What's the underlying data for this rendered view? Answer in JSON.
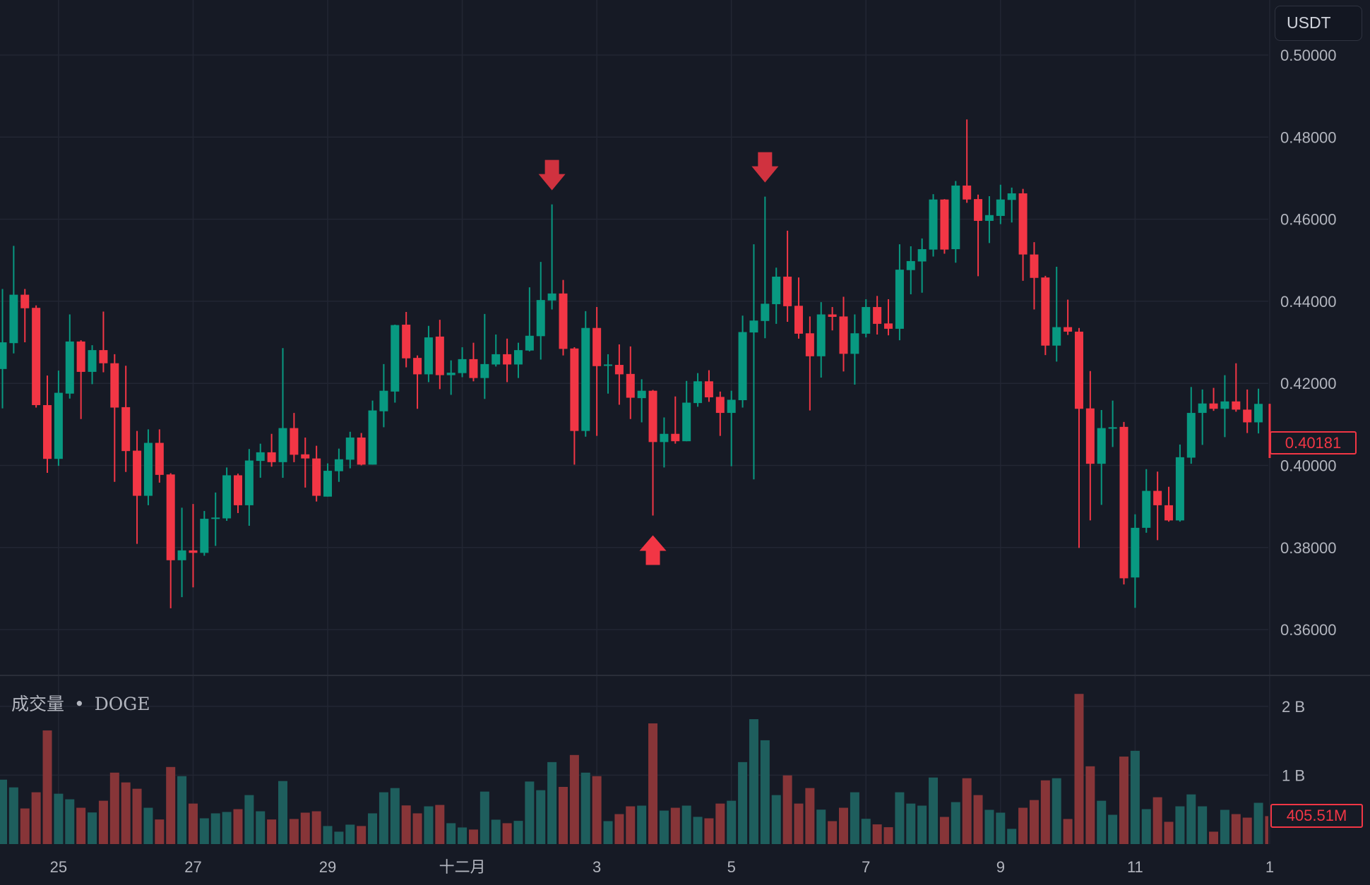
{
  "toolbar": {
    "currency_button": "USDT"
  },
  "volume_pane": {
    "title": "成交量",
    "separator": "•",
    "symbol": "DOGE"
  },
  "last_price_label": "0.40181",
  "last_volume_label": "405.51M",
  "colors": {
    "background": "#161a25",
    "grid": "#222633",
    "up": "#089981",
    "down": "#f23645",
    "volume_up": "#1e5e5d",
    "volume_down": "#873538",
    "marker_down": "#d0323f",
    "marker_up": "#f23645",
    "axis_text": "#b2b5be"
  },
  "chart_data": [
    {
      "type": "candlestick",
      "ylim": [
        0.35,
        0.5
      ],
      "price_ticks": [
        "0.50000",
        "0.48000",
        "0.46000",
        "0.44000",
        "0.42000",
        "0.40000",
        "0.38000",
        "0.36000"
      ],
      "x_ticks": [
        {
          "label": "25",
          "candle": 5
        },
        {
          "label": "27",
          "candle": 17
        },
        {
          "label": "29",
          "candle": 29
        },
        {
          "label": "十二月",
          "candle": 41
        },
        {
          "label": "3",
          "candle": 53
        },
        {
          "label": "5",
          "candle": 65
        },
        {
          "label": "7",
          "candle": 77
        },
        {
          "label": "9",
          "candle": 89
        },
        {
          "label": "11",
          "candle": 101
        },
        {
          "label": "1",
          "candle": 113
        }
      ],
      "grid": true,
      "fields": [
        "open",
        "high",
        "low",
        "close"
      ],
      "candles": [
        [
          0.4235,
          0.443,
          0.4139,
          0.43
        ],
        [
          0.4298,
          0.4535,
          0.4273,
          0.4416
        ],
        [
          0.4416,
          0.443,
          0.43,
          0.4383
        ],
        [
          0.4384,
          0.439,
          0.4141,
          0.4147
        ],
        [
          0.4147,
          0.4219,
          0.3982,
          0.4016
        ],
        [
          0.4016,
          0.4231,
          0.3999,
          0.4177
        ],
        [
          0.4175,
          0.4368,
          0.4163,
          0.4302
        ],
        [
          0.4302,
          0.4305,
          0.4113,
          0.4228
        ],
        [
          0.4228,
          0.4293,
          0.4198,
          0.4281
        ],
        [
          0.4281,
          0.4375,
          0.4227,
          0.4249
        ],
        [
          0.4249,
          0.4271,
          0.396,
          0.4141
        ],
        [
          0.4142,
          0.4243,
          0.3984,
          0.4035
        ],
        [
          0.4036,
          0.4084,
          0.3809,
          0.3926
        ],
        [
          0.3926,
          0.4088,
          0.3903,
          0.4055
        ],
        [
          0.4055,
          0.4088,
          0.3958,
          0.3977
        ],
        [
          0.3978,
          0.3981,
          0.3652,
          0.3769
        ],
        [
          0.3769,
          0.3897,
          0.3679,
          0.3793
        ],
        [
          0.3793,
          0.3906,
          0.3703,
          0.3787
        ],
        [
          0.3787,
          0.3889,
          0.378,
          0.387
        ],
        [
          0.3871,
          0.3934,
          0.3804,
          0.3873
        ],
        [
          0.3871,
          0.3995,
          0.3865,
          0.3976
        ],
        [
          0.3976,
          0.398,
          0.3884,
          0.3903
        ],
        [
          0.3903,
          0.404,
          0.3853,
          0.4012
        ],
        [
          0.4011,
          0.4053,
          0.397,
          0.4032
        ],
        [
          0.4032,
          0.4077,
          0.3997,
          0.4008
        ],
        [
          0.4008,
          0.4286,
          0.397,
          0.4091
        ],
        [
          0.4091,
          0.4128,
          0.4008,
          0.4026
        ],
        [
          0.4027,
          0.4068,
          0.3946,
          0.4017
        ],
        [
          0.4017,
          0.4048,
          0.3912,
          0.3926
        ],
        [
          0.3924,
          0.4005,
          0.3924,
          0.3987
        ],
        [
          0.3986,
          0.4041,
          0.396,
          0.4015
        ],
        [
          0.4014,
          0.4082,
          0.3993,
          0.4068
        ],
        [
          0.4068,
          0.4079,
          0.4,
          0.4002
        ],
        [
          0.4002,
          0.4158,
          0.4002,
          0.4134
        ],
        [
          0.4132,
          0.4247,
          0.4093,
          0.4182
        ],
        [
          0.418,
          0.4343,
          0.4153,
          0.4342
        ],
        [
          0.4343,
          0.4374,
          0.4239,
          0.4261
        ],
        [
          0.4262,
          0.4268,
          0.4138,
          0.4222
        ],
        [
          0.4222,
          0.434,
          0.4203,
          0.4312
        ],
        [
          0.4314,
          0.4355,
          0.4186,
          0.422
        ],
        [
          0.422,
          0.4256,
          0.4172,
          0.4226
        ],
        [
          0.4225,
          0.4288,
          0.4215,
          0.4259
        ],
        [
          0.4259,
          0.4299,
          0.4205,
          0.4213
        ],
        [
          0.4213,
          0.4369,
          0.4162,
          0.4247
        ],
        [
          0.4246,
          0.4319,
          0.4241,
          0.4271
        ],
        [
          0.4271,
          0.4309,
          0.4203,
          0.4246
        ],
        [
          0.4246,
          0.4299,
          0.4213,
          0.4281
        ],
        [
          0.428,
          0.4434,
          0.4278,
          0.4316
        ],
        [
          0.4315,
          0.4496,
          0.4258,
          0.4403
        ],
        [
          0.4402,
          0.4636,
          0.438,
          0.4419
        ],
        [
          0.4419,
          0.4452,
          0.4268,
          0.4284
        ],
        [
          0.4285,
          0.4288,
          0.4002,
          0.4084
        ],
        [
          0.4084,
          0.4376,
          0.407,
          0.4335
        ],
        [
          0.4335,
          0.4386,
          0.4072,
          0.4242
        ],
        [
          0.4244,
          0.4271,
          0.4175,
          0.4246
        ],
        [
          0.4245,
          0.4295,
          0.4148,
          0.4222
        ],
        [
          0.4223,
          0.429,
          0.4113,
          0.4165
        ],
        [
          0.4164,
          0.421,
          0.4105,
          0.4182
        ],
        [
          0.4182,
          0.4184,
          0.3878,
          0.4057
        ],
        [
          0.4057,
          0.4117,
          0.3995,
          0.4077
        ],
        [
          0.4077,
          0.4168,
          0.4053,
          0.4059
        ],
        [
          0.4059,
          0.4206,
          0.4059,
          0.4153
        ],
        [
          0.4152,
          0.4225,
          0.4143,
          0.4205
        ],
        [
          0.4205,
          0.4232,
          0.4155,
          0.4166
        ],
        [
          0.4167,
          0.418,
          0.4072,
          0.4128
        ],
        [
          0.4128,
          0.4182,
          0.3998,
          0.416
        ],
        [
          0.4159,
          0.4365,
          0.4141,
          0.4325
        ],
        [
          0.4324,
          0.4539,
          0.3966,
          0.4353
        ],
        [
          0.4352,
          0.4655,
          0.431,
          0.4394
        ],
        [
          0.4393,
          0.4482,
          0.4345,
          0.446
        ],
        [
          0.446,
          0.4572,
          0.435,
          0.4388
        ],
        [
          0.4389,
          0.4458,
          0.4309,
          0.4321
        ],
        [
          0.4322,
          0.4363,
          0.4134,
          0.4266
        ],
        [
          0.4266,
          0.4398,
          0.4214,
          0.4368
        ],
        [
          0.4368,
          0.4386,
          0.4329,
          0.4362
        ],
        [
          0.4363,
          0.4411,
          0.4229,
          0.4272
        ],
        [
          0.4272,
          0.4368,
          0.4197,
          0.4322
        ],
        [
          0.4321,
          0.4405,
          0.4312,
          0.4386
        ],
        [
          0.4386,
          0.4413,
          0.4319,
          0.4345
        ],
        [
          0.4346,
          0.4405,
          0.4317,
          0.4333
        ],
        [
          0.4333,
          0.4539,
          0.4305,
          0.4477
        ],
        [
          0.4476,
          0.4534,
          0.4417,
          0.4498
        ],
        [
          0.4497,
          0.4553,
          0.4421,
          0.4527
        ],
        [
          0.4526,
          0.4661,
          0.4509,
          0.4648
        ],
        [
          0.4648,
          0.4649,
          0.4516,
          0.4526
        ],
        [
          0.4527,
          0.4693,
          0.4494,
          0.4682
        ],
        [
          0.4682,
          0.4843,
          0.464,
          0.4648
        ],
        [
          0.4649,
          0.466,
          0.4461,
          0.4596
        ],
        [
          0.4596,
          0.4656,
          0.4542,
          0.461
        ],
        [
          0.4608,
          0.4684,
          0.4588,
          0.4648
        ],
        [
          0.4647,
          0.4677,
          0.4592,
          0.4663
        ],
        [
          0.4663,
          0.4674,
          0.445,
          0.4514
        ],
        [
          0.4514,
          0.4544,
          0.438,
          0.4457
        ],
        [
          0.4458,
          0.4462,
          0.4269,
          0.4292
        ],
        [
          0.4292,
          0.4484,
          0.4253,
          0.4337
        ],
        [
          0.4337,
          0.4404,
          0.4318,
          0.4326
        ],
        [
          0.4326,
          0.4335,
          0.3799,
          0.4138
        ],
        [
          0.4139,
          0.423,
          0.3866,
          0.4004
        ],
        [
          0.4004,
          0.4135,
          0.3904,
          0.4091
        ],
        [
          0.4091,
          0.4158,
          0.4045,
          0.4093
        ],
        [
          0.4094,
          0.4106,
          0.371,
          0.3725
        ],
        [
          0.3727,
          0.3881,
          0.3653,
          0.3848
        ],
        [
          0.3848,
          0.3991,
          0.3836,
          0.3938
        ],
        [
          0.3938,
          0.3985,
          0.3818,
          0.3903
        ],
        [
          0.3903,
          0.3948,
          0.3863,
          0.3866
        ],
        [
          0.3866,
          0.4051,
          0.3863,
          0.402
        ],
        [
          0.4019,
          0.4191,
          0.4004,
          0.4128
        ],
        [
          0.4128,
          0.4185,
          0.405,
          0.4151
        ],
        [
          0.4151,
          0.4189,
          0.4133,
          0.4138
        ],
        [
          0.4138,
          0.422,
          0.4069,
          0.4156
        ],
        [
          0.4156,
          0.4249,
          0.4131,
          0.4136
        ],
        [
          0.4136,
          0.4185,
          0.4079,
          0.4105
        ],
        [
          0.4105,
          0.4187,
          0.4078,
          0.415
        ],
        [
          0.415,
          0.415,
          0.4018,
          0.40181
        ]
      ],
      "markers": [
        {
          "candle": 49,
          "direction": "down"
        },
        {
          "candle": 68,
          "direction": "down"
        },
        {
          "candle": 58,
          "direction": "up"
        }
      ]
    },
    {
      "type": "bar",
      "title": "成交量 • DOGE",
      "unit": "B",
      "ylim": [
        0,
        2.4
      ],
      "y_ticks": [
        {
          "label": "2 B",
          "value": 2
        },
        {
          "label": "1 B",
          "value": 1
        }
      ],
      "values": [
        0.935,
        0.823,
        0.517,
        0.752,
        1.65,
        0.731,
        0.65,
        0.527,
        0.459,
        0.629,
        1.037,
        0.895,
        0.803,
        0.527,
        0.357,
        1.119,
        0.986,
        0.588,
        0.374,
        0.446,
        0.466,
        0.507,
        0.711,
        0.476,
        0.357,
        0.915,
        0.364,
        0.456,
        0.476,
        0.262,
        0.18,
        0.282,
        0.262,
        0.446,
        0.752,
        0.813,
        0.561,
        0.446,
        0.548,
        0.568,
        0.303,
        0.241,
        0.211,
        0.762,
        0.354,
        0.303,
        0.337,
        0.908,
        0.782,
        1.19,
        0.83,
        1.293,
        1.037,
        0.986,
        0.333,
        0.435,
        0.548,
        0.558,
        1.752,
        0.486,
        0.527,
        0.558,
        0.395,
        0.374,
        0.588,
        0.629,
        1.19,
        1.813,
        1.507,
        0.711,
        0.997,
        0.588,
        0.813,
        0.5,
        0.333,
        0.527,
        0.752,
        0.367,
        0.286,
        0.245,
        0.752,
        0.588,
        0.558,
        0.966,
        0.394,
        0.609,
        0.956,
        0.711,
        0.497,
        0.456,
        0.221,
        0.527,
        0.639,
        0.925,
        0.956,
        0.364,
        2.18,
        1.129,
        0.629,
        0.425,
        1.27,
        1.354,
        0.507,
        0.68,
        0.323,
        0.548,
        0.721,
        0.548,
        0.18,
        0.497,
        0.435,
        0.384,
        0.599,
        0.40551
      ]
    }
  ]
}
